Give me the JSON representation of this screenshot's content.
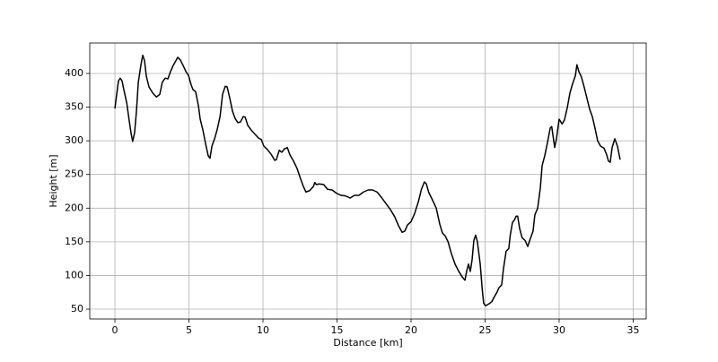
{
  "chart_data": {
    "type": "line",
    "x_label": "Distance [km]",
    "y_label": "Height [m]",
    "x": [
      0,
      0.12,
      0.24,
      0.36,
      0.48,
      0.6,
      0.8,
      0.97,
      1.1,
      1.2,
      1.33,
      1.45,
      1.58,
      1.76,
      1.88,
      2.0,
      2.12,
      2.3,
      2.55,
      2.8,
      3.03,
      3.2,
      3.4,
      3.58,
      3.76,
      3.94,
      4.12,
      4.24,
      4.42,
      4.6,
      4.79,
      4.97,
      5.15,
      5.27,
      5.45,
      5.64,
      5.76,
      5.94,
      6.12,
      6.3,
      6.42,
      6.55,
      6.73,
      6.9,
      7.1,
      7.27,
      7.45,
      7.58,
      7.76,
      7.94,
      8.12,
      8.3,
      8.48,
      8.67,
      8.8,
      8.97,
      9.2,
      9.45,
      9.7,
      9.88,
      10.06,
      10.3,
      10.55,
      10.79,
      10.9,
      11.1,
      11.27,
      11.45,
      11.64,
      11.82,
      12.06,
      12.3,
      12.5,
      12.73,
      12.9,
      13.15,
      13.4,
      13.5,
      13.6,
      13.8,
      14.1,
      14.36,
      14.67,
      14.97,
      15.27,
      15.6,
      15.88,
      16.18,
      16.48,
      16.79,
      17.1,
      17.4,
      17.7,
      18.0,
      18.3,
      18.6,
      18.9,
      19.15,
      19.4,
      19.58,
      19.76,
      20.0,
      20.24,
      20.5,
      20.7,
      20.9,
      21.03,
      21.2,
      21.45,
      21.7,
      21.94,
      22.12,
      22.3,
      22.5,
      22.73,
      22.97,
      23.2,
      23.45,
      23.64,
      23.76,
      23.88,
      24.0,
      24.12,
      24.24,
      24.36,
      24.48,
      24.67,
      24.8,
      24.9,
      25.03,
      25.27,
      25.45,
      25.64,
      25.8,
      25.94,
      26.12,
      26.24,
      26.42,
      26.6,
      26.7,
      26.85,
      26.97,
      27.1,
      27.2,
      27.33,
      27.5,
      27.7,
      27.88,
      28.06,
      28.24,
      28.36,
      28.55,
      28.73,
      28.85,
      29.03,
      29.2,
      29.4,
      29.5,
      29.7,
      29.82,
      30.0,
      30.2,
      30.36,
      30.55,
      30.73,
      30.9,
      31.1,
      31.2,
      31.33,
      31.5,
      31.7,
      31.88,
      32.06,
      32.24,
      32.42,
      32.6,
      32.8,
      33.03,
      33.2,
      33.33,
      33.45,
      33.58,
      33.76,
      33.94,
      34.12
    ],
    "series": [
      {
        "color": "#000000",
        "values": [
          348,
          369,
          389,
          393,
          389,
          376,
          356,
          329,
          310,
          299,
          312,
          343,
          387,
          413,
          427,
          419,
          396,
          380,
          371,
          365,
          369,
          387,
          393,
          392,
          403,
          412,
          419,
          424,
          420,
          412,
          403,
          397,
          383,
          376,
          373,
          352,
          332,
          316,
          296,
          278,
          274,
          292,
          303,
          316,
          336,
          369,
          381,
          380,
          363,
          344,
          333,
          327,
          328,
          336,
          335,
          323,
          316,
          310,
          304,
          302,
          292,
          287,
          280,
          271,
          272,
          286,
          283,
          288,
          290,
          279,
          270,
          259,
          246,
          232,
          224,
          226,
          232,
          238,
          235,
          236,
          235,
          228,
          227,
          222,
          219,
          218,
          215,
          219,
          219,
          224,
          227,
          227,
          224,
          216,
          207,
          198,
          187,
          174,
          164,
          166,
          175,
          180,
          192,
          210,
          228,
          239,
          236,
          223,
          212,
          200,
          176,
          163,
          159,
          150,
          132,
          117,
          107,
          98,
          93,
          107,
          117,
          106,
          123,
          152,
          160,
          150,
          117,
          81,
          59,
          55,
          58,
          61,
          69,
          75,
          82,
          86,
          110,
          136,
          140,
          160,
          179,
          182,
          188,
          188,
          170,
          156,
          152,
          143,
          155,
          166,
          190,
          200,
          230,
          263,
          278,
          296,
          319,
          321,
          290,
          303,
          332,
          325,
          331,
          349,
          371,
          384,
          397,
          413,
          403,
          395,
          379,
          363,
          347,
          336,
          319,
          300,
          292,
          289,
          280,
          270,
          268,
          290,
          303,
          292,
          272
        ]
      }
    ],
    "xlim": [
      -1.7,
      35.88
    ],
    "ylim": [
      35.4,
      445.2
    ],
    "xticks": [
      0,
      5,
      10,
      15,
      20,
      25,
      30,
      35
    ],
    "yticks": [
      50,
      100,
      150,
      200,
      250,
      300,
      350,
      400
    ],
    "grid": true
  }
}
